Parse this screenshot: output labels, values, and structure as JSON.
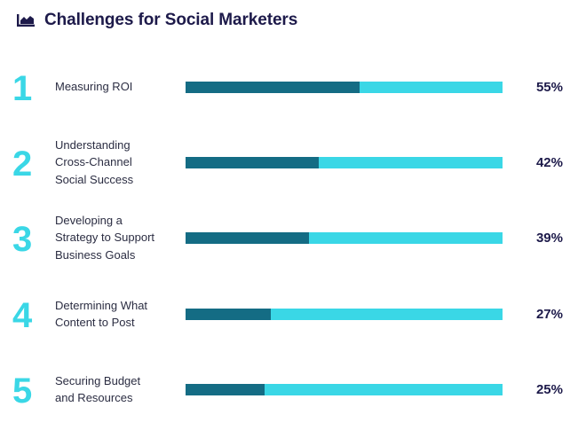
{
  "header": {
    "title": "Challenges for Social Marketers",
    "icon": "bar-chart-icon"
  },
  "colors": {
    "accent": "#3ad7e6",
    "fill": "#146c84",
    "title": "#1d1a4a"
  },
  "chart_data": {
    "type": "bar",
    "orientation": "horizontal",
    "title": "Challenges for Social Marketers",
    "categories": [
      "Measuring ROI",
      "Understanding Cross-Channel Social Success",
      "Developing a Strategy to Support Business Goals",
      "Determining What Content to Post",
      "Securing Budget and Resources"
    ],
    "values": [
      55,
      42,
      39,
      27,
      25
    ],
    "xlim": [
      0,
      100
    ],
    "grid": false
  },
  "rows": [
    {
      "rank": "1",
      "lines": [
        "Measuring ROI"
      ],
      "pct": "55%"
    },
    {
      "rank": "2",
      "lines": [
        "Understanding",
        "Cross-Channel",
        "Social Success"
      ],
      "pct": "42%"
    },
    {
      "rank": "3",
      "lines": [
        "Developing a",
        "Strategy to Support",
        "Business Goals"
      ],
      "pct": "39%"
    },
    {
      "rank": "4",
      "lines": [
        "Determining What",
        "Content to Post"
      ],
      "pct": "27%"
    },
    {
      "rank": "5",
      "lines": [
        "Securing Budget",
        "and Resources"
      ],
      "pct": "25%"
    }
  ]
}
